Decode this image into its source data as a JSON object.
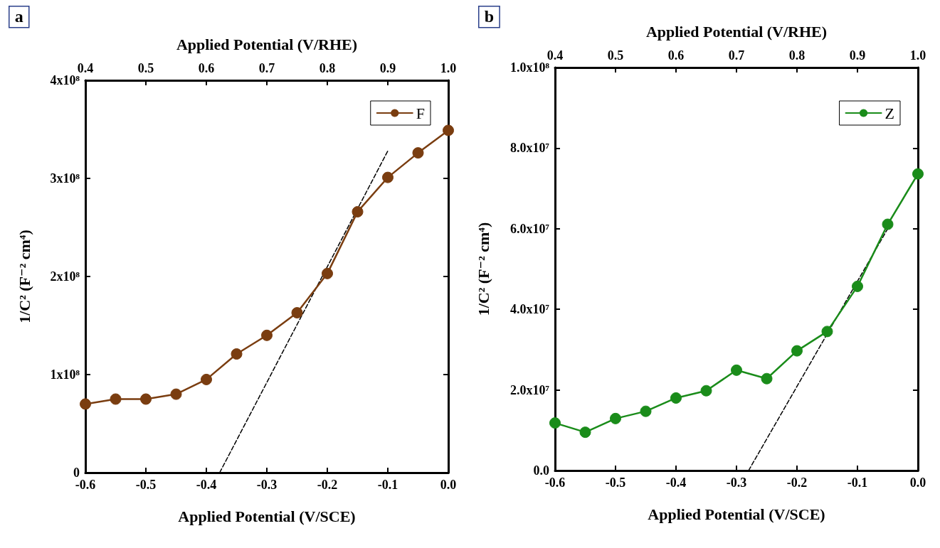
{
  "chart_data": [
    {
      "type": "line",
      "title": null,
      "annotations": [
        "a"
      ],
      "xlabel": "Applied Potential (V/SCE)",
      "x2label": "Applied Potential (V/RHE)",
      "ylabel": "1/C² (F⁻² cm⁴)",
      "x": [
        -0.6,
        -0.55,
        -0.5,
        -0.45,
        -0.4,
        -0.35,
        -0.3,
        -0.25,
        -0.2,
        -0.15,
        -0.1,
        -0.05,
        0
      ],
      "series": [
        {
          "name": "F",
          "color": "#7a3d10",
          "marker": "circle",
          "values": [
            70000000,
            75000000,
            75000000,
            80000000,
            95000000,
            121000000,
            140000000,
            163000000,
            203000000,
            266000000,
            301000000,
            326000000,
            349000000
          ]
        },
        {
          "type": "line",
          "color": "#000000",
          "marker": "none",
          "line_style": "dashed",
          "x": [
            -0.378,
            -0.1
          ],
          "values": [
            0,
            328000000
          ]
        }
      ],
      "xlim": [
        -0.6,
        0
      ],
      "xticks": [
        -0.6,
        -0.5,
        -0.4,
        -0.3,
        -0.2,
        -0.1,
        {
          "value": 0,
          "label": "0.0"
        }
      ],
      "x2lim": [
        0.4,
        1.0
      ],
      "x2ticks": [
        0.4,
        0.5,
        0.6,
        0.7,
        0.8,
        0.9,
        {
          "value": 1.0,
          "label": "1.0"
        }
      ],
      "ylim": [
        0,
        400000000
      ],
      "yticks": [
        0,
        {
          "value": 100000000,
          "label": "1x10⁸"
        },
        {
          "value": 200000000,
          "label": "2x10⁸"
        },
        {
          "value": 300000000,
          "label": "3x10⁸"
        },
        {
          "value": 400000000,
          "label": "4x10⁸"
        }
      ],
      "grid": false,
      "legend": "top right",
      "line_style": "solid"
    },
    {
      "type": "line",
      "title": null,
      "annotations": [
        "b"
      ],
      "xlabel": "Applied Potential (V/SCE)",
      "x2label": "Applied Potential (V/RHE)",
      "ylabel": "1/C² (F⁻² cm⁴)",
      "x": [
        -0.6,
        -0.55,
        -0.5,
        -0.45,
        -0.4,
        -0.35,
        -0.3,
        -0.25,
        -0.2,
        -0.15,
        -0.1,
        -0.05,
        0
      ],
      "series": [
        {
          "name": "Z",
          "color": "#1a8c1a",
          "marker": "circle",
          "values": [
            11800000,
            9500000,
            12900000,
            14700000,
            18000000,
            19800000,
            24900000,
            22800000,
            29700000,
            34500000,
            45700000,
            61100000,
            73600000
          ]
        },
        {
          "type": "line",
          "color": "#000000",
          "marker": "none",
          "line_style": "dashed",
          "x": [
            -0.28,
            -0.05
          ],
          "values": [
            0,
            60000000
          ]
        }
      ],
      "xlim": [
        -0.6,
        0
      ],
      "xticks": [
        -0.6,
        -0.5,
        -0.4,
        -0.3,
        -0.2,
        -0.1,
        {
          "value": 0,
          "label": "0.0"
        }
      ],
      "x2lim": [
        0.4,
        1.0
      ],
      "x2ticks": [
        0.4,
        0.5,
        0.6,
        0.7,
        0.8,
        0.9,
        {
          "value": 1.0,
          "label": "1.0"
        }
      ],
      "ylim": [
        0,
        100000000
      ],
      "yticks": [
        {
          "value": 0,
          "label": "0.0"
        },
        {
          "value": 20000000,
          "label": "2.0x10⁷"
        },
        {
          "value": 40000000,
          "label": "4.0x10⁷"
        },
        {
          "value": 60000000,
          "label": "6.0x10⁷"
        },
        {
          "value": 80000000,
          "label": "8.0x10⁷"
        },
        {
          "value": 100000000,
          "label": "1.0x10⁸"
        }
      ],
      "grid": false,
      "legend": "top right",
      "line_style": "solid"
    }
  ]
}
